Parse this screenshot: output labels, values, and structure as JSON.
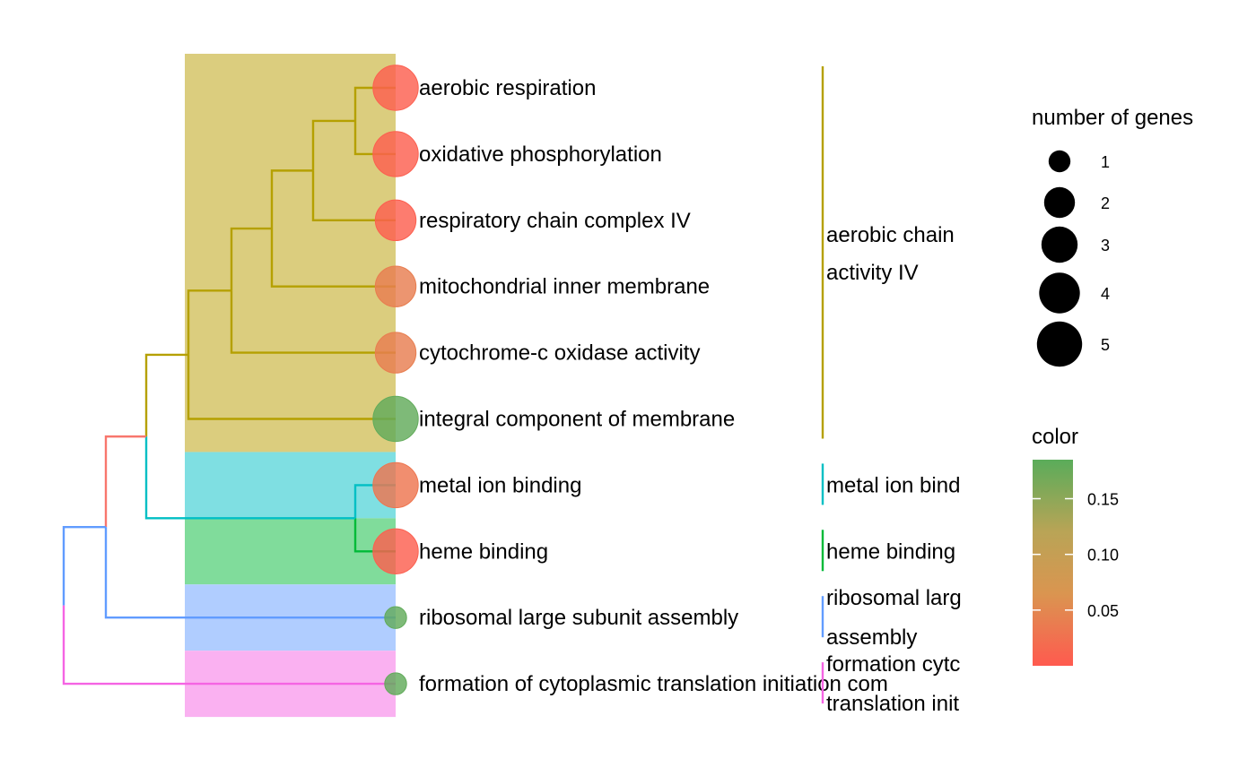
{
  "chart_data": {
    "type": "treeplot",
    "terms": [
      {
        "label": "aerobic respiration",
        "number_of_genes": 5,
        "color_value": 0.005
      },
      {
        "label": "oxidative phosphorylation",
        "number_of_genes": 5,
        "color_value": 0.005
      },
      {
        "label": "respiratory chain complex IV",
        "number_of_genes": 4,
        "color_value": 0.005
      },
      {
        "label": "mitochondrial inner membrane",
        "number_of_genes": 4,
        "color_value": 0.04
      },
      {
        "label": "cytochrome-c oxidase activity",
        "number_of_genes": 4,
        "color_value": 0.04
      },
      {
        "label": "integral component of membrane",
        "number_of_genes": 5,
        "color_value": 0.18
      },
      {
        "label": "metal ion binding",
        "number_of_genes": 5,
        "color_value": 0.03
      },
      {
        "label": "heme binding",
        "number_of_genes": 5,
        "color_value": 0.005
      },
      {
        "label": "ribosomal large subunit assembly",
        "number_of_genes": 1,
        "color_value": 0.18
      },
      {
        "label": "formation of cytoplasmic translation initiation com",
        "number_of_genes": 1,
        "color_value": 0.18
      }
    ],
    "clusters": [
      {
        "name": "aerobic chain activity IV",
        "lines": [
          "aerobic chain",
          "activity IV"
        ],
        "first": 0,
        "last": 5,
        "color": "#b5a000",
        "fill": "#dbcd7e"
      },
      {
        "name": "metal ion bind",
        "lines": [
          "metal ion bind"
        ],
        "first": 6,
        "last": 6,
        "color": "#00bfc4",
        "fill": "#7fdfe2"
      },
      {
        "name": "heme binding",
        "lines": [
          "heme binding"
        ],
        "first": 7,
        "last": 7,
        "color": "#00ba38",
        "fill": "#80dc9b"
      },
      {
        "name": "ribosomal larg assembly",
        "lines": [
          "ribosomal larg",
          "assembly"
        ],
        "first": 8,
        "last": 8,
        "color": "#619cff",
        "fill": "#b0cdff"
      },
      {
        "name": "formation cytc translation init",
        "lines": [
          "formation cytc",
          "translation init"
        ],
        "first": 9,
        "last": 9,
        "color": "#f564e3",
        "fill": "#fab1f1"
      }
    ],
    "tree": [
      {
        "level": 5,
        "children": [
          0,
          1
        ],
        "color": "#b5a000"
      },
      {
        "level": 4,
        "children": [
          "n0",
          2
        ],
        "color": "#b5a000"
      },
      {
        "level": 3,
        "children": [
          "n1",
          3
        ],
        "color": "#b5a000"
      },
      {
        "level": 2,
        "children": [
          "n2",
          4
        ],
        "color": "#b5a000"
      },
      {
        "level": 1,
        "children": [
          "n3",
          5
        ],
        "color": "#b5a000"
      },
      {
        "level": 5,
        "children": [
          6,
          7
        ],
        "color": "#00bfc4",
        "child_colors": [
          "#00bfc4",
          "#00ba38"
        ]
      },
      {
        "level": 0,
        "children": [
          "n4",
          "n5"
        ],
        "color": "#b5a000",
        "child_colors": [
          "#b5a000",
          "#00bfc4"
        ]
      },
      {
        "level": -1,
        "children": [
          "n6",
          8
        ],
        "color": "#f8766d",
        "child_colors": [
          "#f8766d",
          "#619cff"
        ]
      },
      {
        "level": -2,
        "children": [
          "n7",
          9
        ],
        "color": "#619cff",
        "child_colors": [
          "#619cff",
          "#f564e3"
        ]
      }
    ],
    "size_legend": {
      "title": "number of genes",
      "values": [
        1,
        2,
        3,
        4,
        5
      ]
    },
    "color_legend": {
      "title": "color",
      "min": 0.0,
      "max": 0.185,
      "ticks": [
        0.05,
        0.1,
        0.15
      ],
      "tick_labels": [
        "0.05",
        "0.10",
        "0.15"
      ],
      "low_color": "#ff5a4f",
      "high_color": "#5aac5a"
    }
  }
}
